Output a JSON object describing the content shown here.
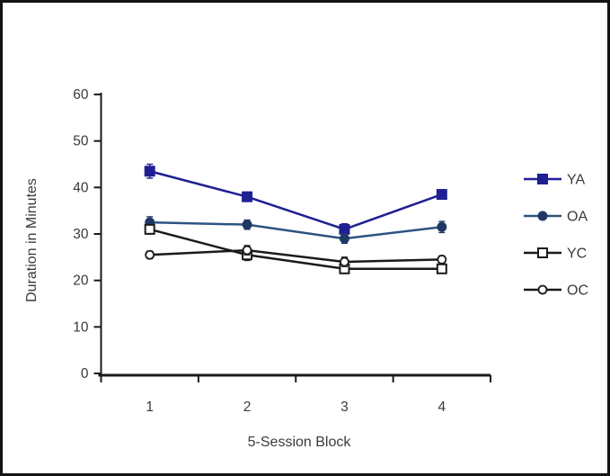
{
  "figure": {
    "background": "#ffffff",
    "frame_border_color": "#141414",
    "text_color": "#3a3a3a",
    "axis_color": "#1a1a1a"
  },
  "chart_data": {
    "type": "line",
    "title": "",
    "xlabel": "5-Session Block",
    "ylabel": "Duration in Minutes",
    "categories": [
      "1",
      "2",
      "3",
      "4"
    ],
    "y_axis": {
      "min": 0,
      "max": 60,
      "tick_step": 10,
      "tick_labels": [
        "0",
        "10",
        "20",
        "30",
        "40",
        "50",
        "60"
      ]
    },
    "grid": false,
    "legend_position": "right",
    "error_bars": true,
    "series": [
      {
        "name": "YA",
        "marker": "square-filled",
        "color": "#1f1f93",
        "values": [
          43.5,
          38,
          31,
          38.5
        ],
        "errors": [
          1.5,
          1,
          1.2,
          1
        ]
      },
      {
        "name": "OA",
        "marker": "circle-filled",
        "color": "#2d5380",
        "marker_fill": "#1f3864",
        "values": [
          32.5,
          32,
          29,
          31.5
        ],
        "errors": [
          1.2,
          1,
          1,
          1.2
        ]
      },
      {
        "name": "YC",
        "marker": "square-open",
        "color": "#1a1a1a",
        "values": [
          31,
          25.5,
          22.5,
          22.5
        ],
        "errors": [
          1,
          1.2,
          1,
          0.8
        ]
      },
      {
        "name": "OC",
        "marker": "circle-open",
        "color": "#1a1a1a",
        "values": [
          25.5,
          26.5,
          24,
          24.5
        ],
        "errors": [
          0.8,
          1,
          1,
          0.8
        ]
      }
    ]
  }
}
